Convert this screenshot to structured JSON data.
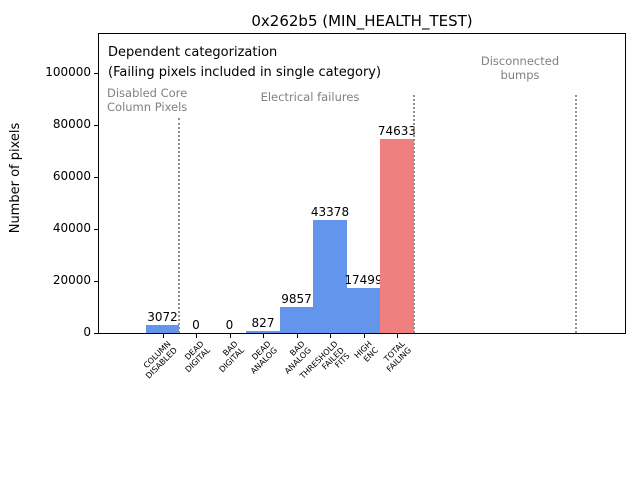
{
  "chart_data": {
    "type": "bar",
    "title": "0x262b5 (MIN_HEALTH_TEST)",
    "xlabel": "",
    "ylabel": "Number of pixels",
    "categories": [
      [
        "COLUMN",
        "DISABLED"
      ],
      [
        "DEAD",
        "DIGITAL"
      ],
      [
        "BAD",
        "DIGITAL"
      ],
      [
        "DEAD",
        "ANALOG"
      ],
      [
        "BAD",
        "ANALOG"
      ],
      [
        "THRESHOLD",
        "FAILED",
        "FITS"
      ],
      [
        "HIGH",
        "ENC"
      ],
      [
        "TOTAL",
        "FAILING"
      ]
    ],
    "values": [
      3072,
      0,
      0,
      827,
      9857,
      43378,
      17499,
      74633
    ],
    "value_labels": [
      "3072",
      "0",
      "0",
      "827",
      "9857",
      "43378",
      "17499",
      "74633"
    ],
    "bar_colors": [
      "#6495ED",
      "#6495ED",
      "#6495ED",
      "#6495ED",
      "#6495ED",
      "#6495ED",
      "#6495ED",
      "#F08080"
    ],
    "yticks": [
      0,
      20000,
      40000,
      60000,
      80000,
      100000
    ],
    "ytick_labels": [
      "0",
      "20000",
      "40000",
      "60000",
      "80000",
      "100000"
    ],
    "ylim": [
      0,
      115000
    ],
    "grid": false,
    "legend": "none",
    "annotations": {
      "dependent": "Dependent categorization",
      "failing": "(Failing pixels included in single category)",
      "disabled_core_line1": "Disabled Core",
      "disabled_core_line2": "Column Pixels",
      "electrical": "Electrical failures",
      "disconnected_line1": "Disconnected",
      "disconnected_line2": "bumps"
    },
    "separators": [
      {
        "x": 0.5,
        "ytop": 82700
      },
      {
        "x": 7.5,
        "ytop": 91500
      },
      {
        "x": 12.34,
        "ytop": 91500
      }
    ],
    "colors": {
      "bar_blue": "#6495ED",
      "bar_red": "#F08080",
      "gray_text": "#808080",
      "separator_gray": "#909090",
      "axis_black": "#000000"
    }
  }
}
